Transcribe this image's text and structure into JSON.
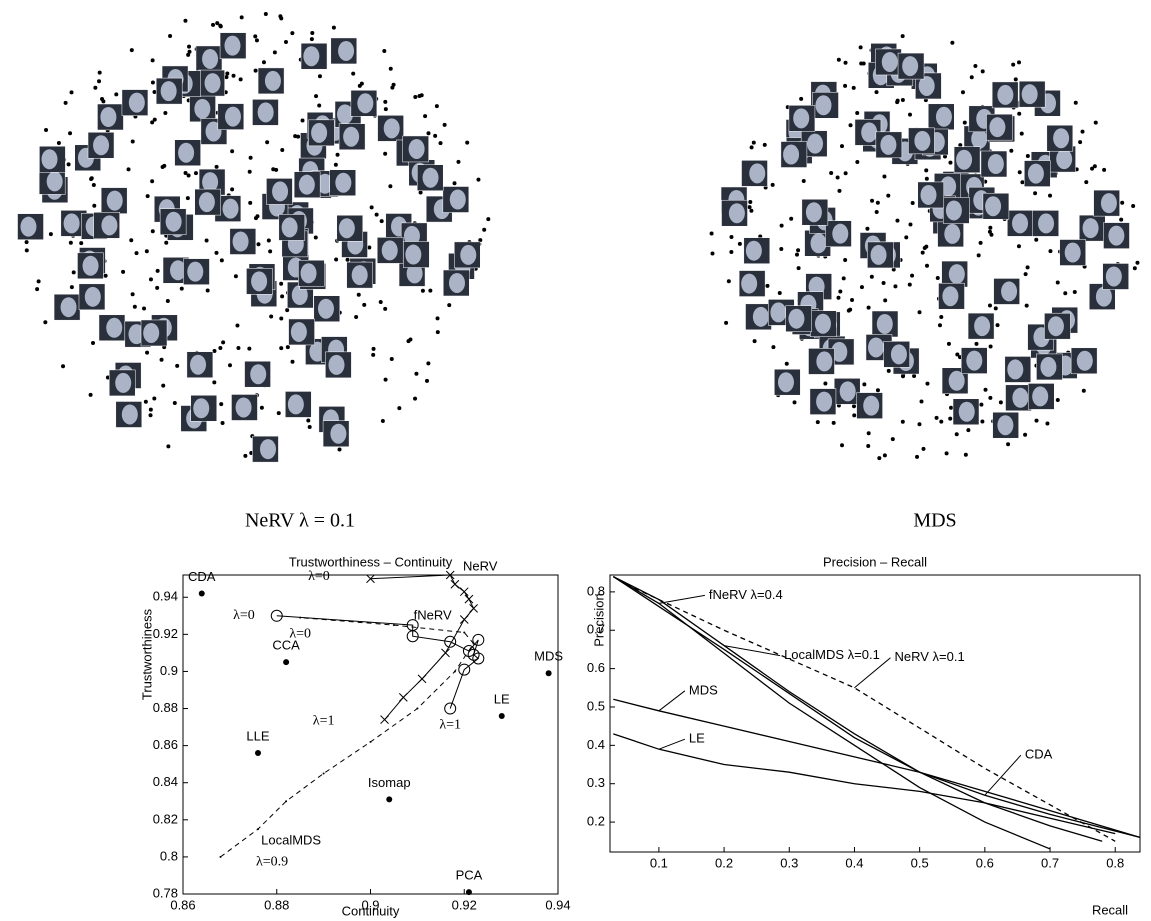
{
  "captions": [
    "NeRV λ = 0.1",
    "MDS"
  ],
  "chart_data": [
    {
      "type": "scatter",
      "title": "Trustworthiness – Continuity",
      "x_label": "Continuity",
      "y_label": "Trustworthiness",
      "xlim": [
        0.86,
        0.94
      ],
      "ylim": [
        0.78,
        0.952
      ],
      "xticks": [
        0.86,
        0.88,
        0.9,
        0.92,
        0.94
      ],
      "yticks": [
        0.78,
        0.8,
        0.82,
        0.84,
        0.86,
        0.88,
        0.9,
        0.92,
        0.94
      ],
      "points": {
        "labels": [
          "CDA",
          "CCA",
          "LLE",
          "Isomap",
          "PCA",
          "LE",
          "MDS"
        ],
        "x": [
          0.864,
          0.882,
          0.876,
          0.904,
          0.921,
          0.928,
          0.938
        ],
        "values": [
          0.942,
          0.905,
          0.856,
          0.831,
          0.781,
          0.876,
          0.899
        ]
      },
      "series": [
        {
          "name": "NeRV",
          "marker": "x",
          "dash": false,
          "color": "#000000",
          "x": [
            0.9,
            0.917,
            0.918,
            0.92,
            0.921,
            0.922,
            0.92,
            0.916,
            0.911,
            0.907,
            0.903
          ],
          "values": [
            0.95,
            0.952,
            0.947,
            0.943,
            0.939,
            0.934,
            0.928,
            0.91,
            0.896,
            0.886,
            0.874
          ]
        },
        {
          "name": "fNeRV",
          "marker": "o",
          "dash": false,
          "color": "#000000",
          "x": [
            0.88,
            0.909,
            0.909,
            0.917,
            0.921,
            0.923,
            0.922,
            0.923,
            0.92,
            0.917
          ],
          "values": [
            0.93,
            0.925,
            0.919,
            0.916,
            0.911,
            0.917,
            0.909,
            0.907,
            0.901,
            0.88
          ]
        },
        {
          "name": "LocalMDS",
          "marker": "dot",
          "dash": true,
          "color": "#000000",
          "x": [
            0.868,
            0.876,
            0.882,
            0.89,
            0.9,
            0.91,
            0.918,
            0.922,
            0.92,
            0.905,
            0.885
          ],
          "values": [
            0.8,
            0.815,
            0.83,
            0.845,
            0.862,
            0.88,
            0.9,
            0.915,
            0.921,
            0.925,
            0.929
          ]
        }
      ],
      "annotations": [
        {
          "text": "λ=0",
          "x": 0.889,
          "y": 0.951
        },
        {
          "text": "λ=0",
          "x": 0.873,
          "y": 0.93
        },
        {
          "text": "λ=0",
          "x": 0.885,
          "y": 0.92
        },
        {
          "text": "λ=1",
          "x": 0.89,
          "y": 0.873
        },
        {
          "text": "λ=1",
          "x": 0.917,
          "y": 0.871
        },
        {
          "text": "λ=0.9",
          "x": 0.879,
          "y": 0.797
        }
      ]
    },
    {
      "type": "line",
      "title": "Precision – Recall",
      "x_label": "Recall",
      "y_label": "Precision",
      "xlim": [
        0.025,
        0.838
      ],
      "ylim": [
        0.122,
        0.844
      ],
      "xticks": [
        0.1,
        0.2,
        0.3,
        0.4,
        0.5,
        0.6,
        0.7,
        0.8
      ],
      "yticks": [
        0.2,
        0.3,
        0.4,
        0.5,
        0.6,
        0.7,
        0.8
      ],
      "series": [
        {
          "name": "fNeRV λ=0.4",
          "dash": false,
          "color": "#000000",
          "x": [
            0.03,
            0.1,
            0.2,
            0.3,
            0.4,
            0.5,
            0.6,
            0.7
          ],
          "values": [
            0.84,
            0.77,
            0.64,
            0.51,
            0.4,
            0.29,
            0.2,
            0.13
          ]
        },
        {
          "name": "LocalMDS λ=0.1",
          "dash": false,
          "color": "#000000",
          "x": [
            0.03,
            0.1,
            0.2,
            0.3,
            0.4,
            0.5,
            0.6,
            0.7,
            0.78
          ],
          "values": [
            0.84,
            0.78,
            0.66,
            0.54,
            0.43,
            0.33,
            0.25,
            0.19,
            0.15
          ]
        },
        {
          "name": "NeRV λ=0.1",
          "dash": true,
          "color": "#000000",
          "x": [
            0.05,
            0.2,
            0.4,
            0.6,
            0.8
          ],
          "values": [
            0.82,
            0.7,
            0.55,
            0.34,
            0.15
          ]
        },
        {
          "name": "CDA",
          "dash": false,
          "color": "#000000",
          "x": [
            0.03,
            0.2,
            0.4,
            0.5,
            0.6,
            0.7,
            0.838
          ],
          "values": [
            0.84,
            0.65,
            0.42,
            0.33,
            0.27,
            0.22,
            0.16
          ]
        },
        {
          "name": "MDS",
          "dash": false,
          "color": "#000000",
          "x": [
            0.03,
            0.1,
            0.2,
            0.3,
            0.4,
            0.5,
            0.6,
            0.7,
            0.838
          ],
          "values": [
            0.52,
            0.49,
            0.45,
            0.41,
            0.37,
            0.33,
            0.28,
            0.23,
            0.16
          ]
        },
        {
          "name": "LE",
          "dash": false,
          "color": "#000000",
          "x": [
            0.03,
            0.1,
            0.2,
            0.3,
            0.4,
            0.5,
            0.6,
            0.7,
            0.8
          ],
          "values": [
            0.43,
            0.39,
            0.35,
            0.33,
            0.3,
            0.28,
            0.25,
            0.21,
            0.17
          ]
        }
      ]
    }
  ]
}
